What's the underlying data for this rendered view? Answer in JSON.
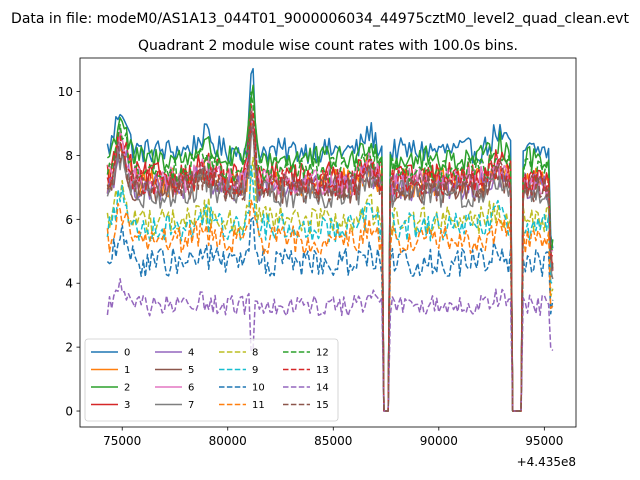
{
  "figure": {
    "suptitle": "Data in file: modeM0/AS1A13_044T01_9000006034_44975cztM0_level2_quad_clean.evt"
  },
  "chart_data": {
    "type": "line",
    "title": "Quadrant 2 module wise count rates with 100.0s bins.",
    "xlabel": "",
    "ylabel": "",
    "x_offset_label": "+4.435e8",
    "x_offset": 443500000,
    "xlim": [
      73000,
      96500
    ],
    "ylim": [
      -0.5,
      11.05
    ],
    "xticks": [
      75000,
      80000,
      85000,
      90000,
      95000
    ],
    "xtick_labels": [
      "75000",
      "80000",
      "85000",
      "90000",
      "95000"
    ],
    "yticks": [
      0,
      2,
      4,
      6,
      8,
      10
    ],
    "ytick_labels": [
      "0",
      "2",
      "4",
      "6",
      "8",
      "10"
    ],
    "grid": false,
    "legend_position": "lower-left",
    "legend_columns": 4,
    "bin_seconds": 100,
    "x_start": 74300,
    "x_end": 95400,
    "gaps": [
      {
        "from": 87400,
        "to": 87650
      },
      {
        "from": 93450,
        "to": 93950
      }
    ],
    "series": [
      {
        "name": "0",
        "color": "#1f77b4",
        "dash": "solid",
        "level": 8.15,
        "noise": 0.22
      },
      {
        "name": "1",
        "color": "#ff7f0e",
        "dash": "solid",
        "level": 7.15,
        "noise": 0.25
      },
      {
        "name": "2",
        "color": "#2ca02c",
        "dash": "solid",
        "level": 7.9,
        "noise": 0.22
      },
      {
        "name": "3",
        "color": "#d62728",
        "dash": "solid",
        "level": 7.35,
        "noise": 0.25
      },
      {
        "name": "4",
        "color": "#9467bd",
        "dash": "solid",
        "level": 7.0,
        "noise": 0.25
      },
      {
        "name": "5",
        "color": "#8c564b",
        "dash": "solid",
        "level": 6.95,
        "noise": 0.25
      },
      {
        "name": "6",
        "color": "#e377c2",
        "dash": "solid",
        "level": 7.2,
        "noise": 0.25
      },
      {
        "name": "7",
        "color": "#7f7f7f",
        "dash": "solid",
        "level": 6.8,
        "noise": 0.25
      },
      {
        "name": "8",
        "color": "#bcbd22",
        "dash": "dashed",
        "level": 5.95,
        "noise": 0.25
      },
      {
        "name": "9",
        "color": "#17becf",
        "dash": "dashed",
        "level": 5.75,
        "noise": 0.25
      },
      {
        "name": "10",
        "color": "#1f77b4",
        "dash": "dashed",
        "level": 4.65,
        "noise": 0.25
      },
      {
        "name": "11",
        "color": "#ff7f0e",
        "dash": "dashed",
        "level": 5.35,
        "noise": 0.25
      },
      {
        "name": "12",
        "color": "#2ca02c",
        "dash": "dashed",
        "level": 7.55,
        "noise": 0.22
      },
      {
        "name": "13",
        "color": "#d62728",
        "dash": "dashed",
        "level": 7.15,
        "noise": 0.25
      },
      {
        "name": "14",
        "color": "#9467bd",
        "dash": "dashed",
        "level": 3.3,
        "noise": 0.18
      },
      {
        "name": "15",
        "color": "#8c564b",
        "dash": "dashed",
        "level": 7.0,
        "noise": 0.25
      }
    ]
  }
}
